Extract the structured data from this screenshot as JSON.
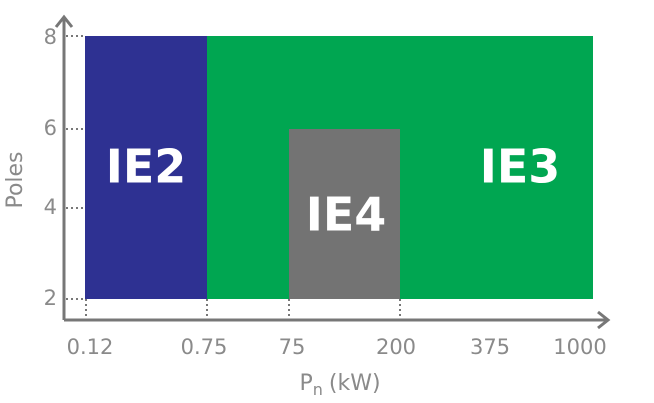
{
  "x_axis": {
    "label": {
      "symbol": "P",
      "subscript": "n",
      "unit": "(kW)"
    },
    "ticks": [
      "0.12",
      "0.75",
      "75",
      "200",
      "375",
      "1000"
    ]
  },
  "y_axis": {
    "label": "Poles",
    "ticks": [
      "2",
      "4",
      "6",
      "8"
    ]
  },
  "regions": [
    {
      "label": "IE2",
      "color": "#2e3192"
    },
    {
      "label": "IE3",
      "color": "#00a651"
    },
    {
      "label": "IE4",
      "color": "#737373"
    }
  ]
}
